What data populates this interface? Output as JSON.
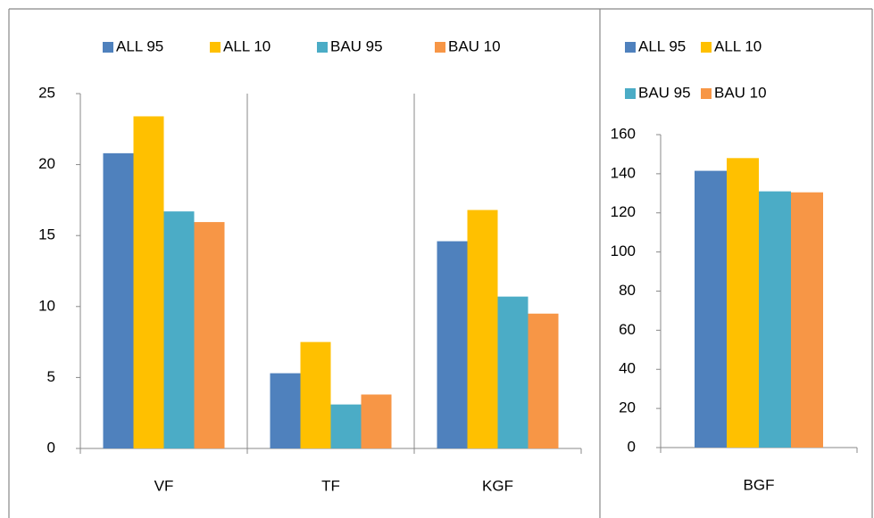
{
  "chart_data": [
    {
      "type": "bar",
      "categories": [
        "VF",
        "TF",
        "KGF"
      ],
      "series": [
        {
          "name": "ALL 95",
          "color": "#4f81bd",
          "values": [
            20.8,
            5.3,
            14.6
          ]
        },
        {
          "name": "ALL 10",
          "color": "#ffc000",
          "values": [
            23.4,
            7.5,
            16.8
          ]
        },
        {
          "name": "BAU 95",
          "color": "#4bacc6",
          "values": [
            16.7,
            3.1,
            10.7
          ]
        },
        {
          "name": "BAU 10",
          "color": "#f79646",
          "values": [
            15.95,
            3.8,
            9.5
          ]
        }
      ],
      "ylim": [
        0,
        25
      ],
      "yticks": [
        0,
        5,
        10,
        15,
        20,
        25
      ],
      "grid": false,
      "legend": "top"
    },
    {
      "type": "bar",
      "categories": [
        "BGF"
      ],
      "series": [
        {
          "name": "ALL 95",
          "color": "#4f81bd",
          "values": [
            141.5
          ]
        },
        {
          "name": "ALL 10",
          "color": "#ffc000",
          "values": [
            148
          ]
        },
        {
          "name": "BAU 95",
          "color": "#4bacc6",
          "values": [
            131
          ]
        },
        {
          "name": "BAU 10",
          "color": "#f79646",
          "values": [
            130.5
          ]
        }
      ],
      "ylim": [
        0,
        160
      ],
      "yticks": [
        0,
        20,
        40,
        60,
        80,
        100,
        120,
        140,
        160
      ],
      "grid": false,
      "legend": "top"
    }
  ]
}
